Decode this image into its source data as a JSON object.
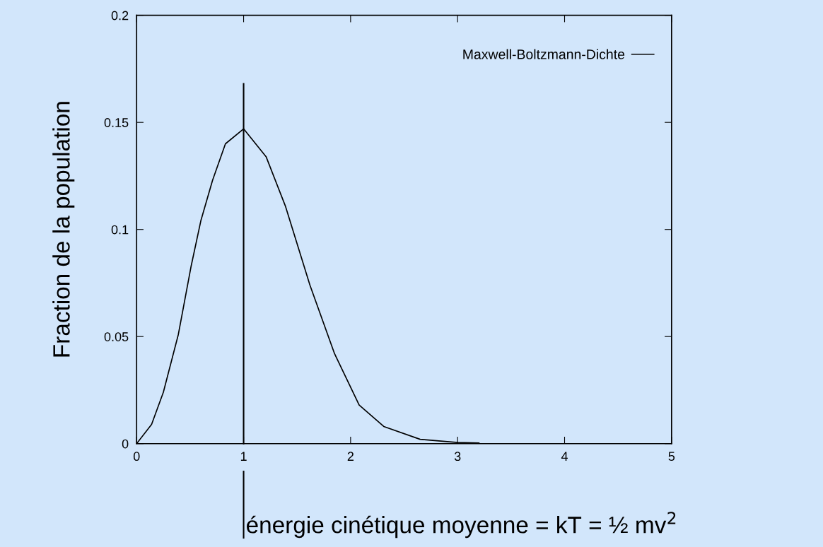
{
  "chart_data": {
    "type": "line",
    "ylabel": "Fraction de la population",
    "x": [
      0,
      0.14,
      0.25,
      0.39,
      0.51,
      0.6,
      0.71,
      0.83,
      1.0,
      1.21,
      1.39,
      1.62,
      1.85,
      2.08,
      2.31,
      2.65,
      3.0,
      3.2
    ],
    "series": [
      {
        "name": "Maxwell-Boltzmann-Dichte",
        "color": "#000000",
        "values": [
          0,
          0.009,
          0.024,
          0.051,
          0.083,
          0.104,
          0.123,
          0.14,
          0.147,
          0.134,
          0.111,
          0.074,
          0.042,
          0.018,
          0.008,
          0.002,
          0.0005,
          0.0003
        ]
      }
    ],
    "xlim": [
      0,
      5
    ],
    "xticks": [
      0,
      1,
      2,
      3,
      4,
      5
    ],
    "ylim": [
      0,
      0.2
    ],
    "yticks": [
      0,
      0.05,
      0.1,
      0.15,
      0.2
    ],
    "ref_lines": [
      {
        "axis": "x",
        "value": 1,
        "label": "énergie cinétique moyenne = kT = ½ mv$^{2}$",
        "color": "#000000"
      }
    ],
    "legend": "top right",
    "grid": false
  }
}
